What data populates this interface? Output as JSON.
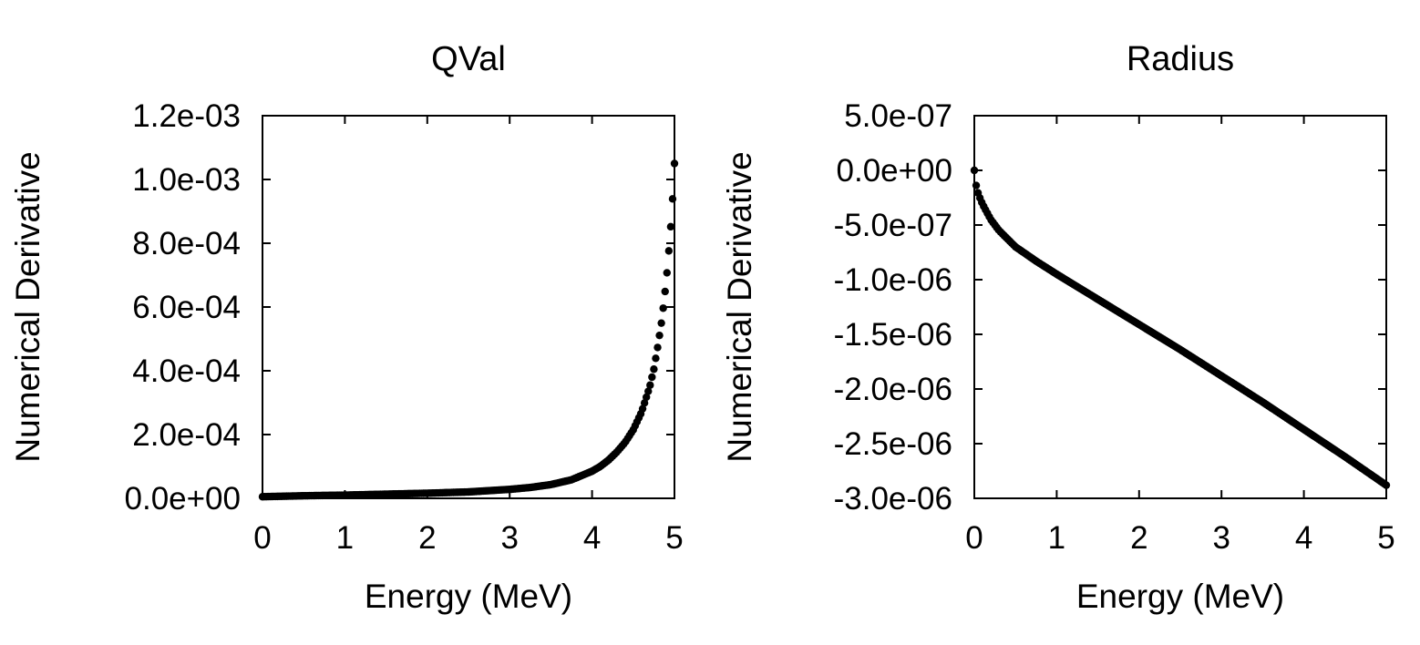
{
  "chart_data": [
    {
      "type": "scatter",
      "title": "QVal",
      "xlabel": "Energy (MeV)",
      "ylabel": "Numerical Derivative",
      "xlim": [
        0,
        5
      ],
      "ylim": [
        0,
        0.0012
      ],
      "xticks": [
        0,
        1,
        2,
        3,
        4,
        5
      ],
      "xtick_labels": [
        "0",
        "1",
        "2",
        "3",
        "4",
        "5"
      ],
      "yticks": [
        0,
        0.0002,
        0.0004,
        0.0006,
        0.0008,
        0.001,
        0.0012
      ],
      "ytick_labels": [
        "0.0e+00",
        "2.0e-04",
        "4.0e-04",
        "6.0e-04",
        "8.0e-04",
        "1.0e-03",
        "1.2e-03"
      ],
      "grid": false,
      "series": [
        {
          "color": "#000000",
          "x": [
            0,
            0.5,
            1,
            1.5,
            2,
            2.5,
            3,
            3.25,
            3.5,
            3.75,
            4,
            4.1,
            4.2,
            4.3,
            4.4,
            4.5,
            4.6,
            4.7,
            4.75,
            4.8,
            4.85,
            4.9,
            4.93,
            4.96,
            4.98,
            5
          ],
          "y": [
            5e-06,
            8e-06,
            1e-05,
            1.3e-05,
            1.6e-05,
            2e-05,
            2.8e-05,
            3.4e-05,
            4.3e-05,
            5.8e-05,
            8.5e-05,
            0.0001,
            0.00012,
            0.000145,
            0.000175,
            0.000215,
            0.00027,
            0.00035,
            0.000405,
            0.00048,
            0.000565,
            0.00068,
            0.00077,
            0.00087,
            0.00095,
            0.00105
          ]
        }
      ]
    },
    {
      "type": "scatter",
      "title": "Radius",
      "xlabel": "Energy (MeV)",
      "ylabel": "Numerical Derivative",
      "xlim": [
        0,
        5
      ],
      "ylim": [
        -3e-06,
        5e-07
      ],
      "xticks": [
        0,
        1,
        2,
        3,
        4,
        5
      ],
      "xtick_labels": [
        "0",
        "1",
        "2",
        "3",
        "4",
        "5"
      ],
      "yticks": [
        -3e-06,
        -2.5e-06,
        -2e-06,
        -1.5e-06,
        -1e-06,
        -5e-07,
        0,
        5e-07
      ],
      "ytick_labels": [
        "-3.0e-06",
        "-2.5e-06",
        "-2.0e-06",
        "-1.5e-06",
        "-1.0e-06",
        "-5.0e-07",
        "0.0e+00",
        "5.0e-07"
      ],
      "grid": false,
      "series": [
        {
          "color": "#000000",
          "x": [
            0,
            0.02,
            0.05,
            0.1,
            0.2,
            0.3,
            0.5,
            0.75,
            1,
            1.5,
            2,
            2.5,
            3,
            3.5,
            4,
            4.5,
            5
          ],
          "y": [
            0,
            -1.3e-07,
            -2.2e-07,
            -3.1e-07,
            -4.5e-07,
            -5.5e-07,
            -7e-07,
            -8.3e-07,
            -9.5e-07,
            -1.18e-06,
            -1.41e-06,
            -1.64e-06,
            -1.88e-06,
            -2.12e-06,
            -2.37e-06,
            -2.62e-06,
            -2.88e-06
          ]
        }
      ]
    }
  ]
}
